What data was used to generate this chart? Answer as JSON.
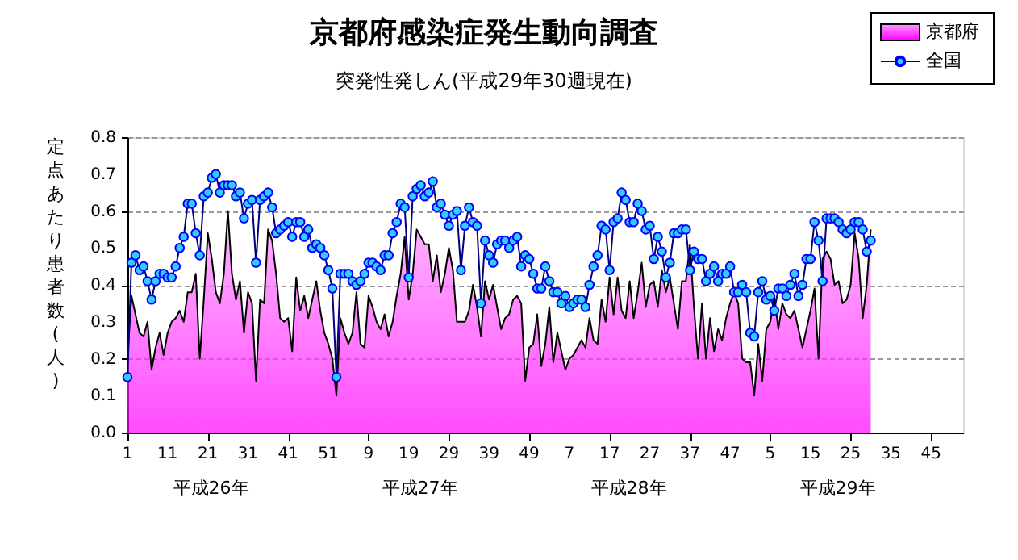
{
  "chart_data": {
    "type": "line",
    "title": "京都府感染症発生動向調査",
    "subtitle": "突発性発しん(平成29年30週現在)",
    "ylabel": "定点あたり患者数(人)",
    "categories": [
      "1",
      null,
      null,
      null,
      null,
      null,
      null,
      null,
      null,
      null,
      "11",
      null,
      null,
      null,
      null,
      null,
      null,
      null,
      null,
      null,
      "21",
      null,
      null,
      null,
      null,
      null,
      null,
      null,
      null,
      null,
      "31",
      null,
      null,
      null,
      null,
      null,
      null,
      null,
      null,
      null,
      "41",
      null,
      null,
      null,
      null,
      null,
      null,
      null,
      null,
      null,
      "51",
      null,
      null,
      null,
      null,
      null,
      null,
      null,
      null,
      null,
      "9",
      null,
      null,
      null,
      null,
      null,
      null,
      null,
      null,
      null,
      "19",
      null,
      null,
      null,
      null,
      null,
      null,
      null,
      null,
      null,
      "29",
      null,
      null,
      null,
      null,
      null,
      null,
      null,
      null,
      null,
      "39",
      null,
      null,
      null,
      null,
      null,
      null,
      null,
      null,
      null,
      "49",
      null,
      null,
      null,
      null,
      null,
      null,
      null,
      null,
      null,
      "7",
      null,
      null,
      null,
      null,
      null,
      null,
      null,
      null,
      null,
      "17",
      null,
      null,
      null,
      null,
      null,
      null,
      null,
      null,
      null,
      "27",
      null,
      null,
      null,
      null,
      null,
      null,
      null,
      null,
      null,
      "37",
      null,
      null,
      null,
      null,
      null,
      null,
      null,
      null,
      null,
      "47",
      null,
      null,
      null,
      null,
      null,
      null,
      null,
      null,
      null,
      "5",
      null,
      null,
      null,
      null,
      null,
      null,
      null,
      null,
      null,
      "15",
      null,
      null,
      null,
      null,
      null,
      null,
      null,
      null,
      null,
      "25",
      null,
      null,
      null,
      null,
      null,
      null,
      null,
      null,
      null,
      "35",
      null,
      null,
      null,
      null,
      null,
      null,
      null,
      null,
      null,
      "45",
      null,
      null,
      null,
      null,
      null,
      null,
      null,
      null
    ],
    "ylim": [
      0,
      0.8
    ],
    "yticks": [
      {
        "value": 0,
        "label": "0.0"
      },
      0.1,
      0.2,
      0.3,
      0.4,
      0.5,
      0.6,
      0.7,
      0.8
    ],
    "grid": "y",
    "legend": "top right",
    "annotations": [
      "平成26年",
      "平成27年",
      "平成28年",
      "平成29年"
    ],
    "series": [
      {
        "name": "京都府",
        "type": "area",
        "color": "#ff00ff",
        "values": [
          0.2,
          0.37,
          0.32,
          0.27,
          0.26,
          0.3,
          0.17,
          0.23,
          0.27,
          0.21,
          0.27,
          0.3,
          0.31,
          0.33,
          0.3,
          0.38,
          0.38,
          0.43,
          0.2,
          0.36,
          0.54,
          0.47,
          0.38,
          0.35,
          0.43,
          0.6,
          0.43,
          0.36,
          0.41,
          0.27,
          0.38,
          0.35,
          0.14,
          0.36,
          0.35,
          0.55,
          0.52,
          0.43,
          0.31,
          0.3,
          0.31,
          0.22,
          0.42,
          0.33,
          0.37,
          0.31,
          0.36,
          0.41,
          0.33,
          0.27,
          0.24,
          0.2,
          0.1,
          0.31,
          0.27,
          0.24,
          0.27,
          0.38,
          0.24,
          0.23,
          0.37,
          0.34,
          0.3,
          0.28,
          0.32,
          0.26,
          0.3,
          0.37,
          0.43,
          0.53,
          0.36,
          0.43,
          0.55,
          0.53,
          0.51,
          0.51,
          0.41,
          0.48,
          0.38,
          0.43,
          0.5,
          0.44,
          0.3,
          0.3,
          0.3,
          0.33,
          0.4,
          0.34,
          0.26,
          0.41,
          0.36,
          0.4,
          0.34,
          0.28,
          0.31,
          0.32,
          0.36,
          0.37,
          0.35,
          0.14,
          0.23,
          0.24,
          0.32,
          0.18,
          0.24,
          0.34,
          0.19,
          0.27,
          0.22,
          0.17,
          0.2,
          0.21,
          0.23,
          0.25,
          0.23,
          0.31,
          0.25,
          0.24,
          0.36,
          0.3,
          0.42,
          0.32,
          0.42,
          0.33,
          0.31,
          0.41,
          0.31,
          0.38,
          0.46,
          0.34,
          0.4,
          0.41,
          0.34,
          0.44,
          0.38,
          0.42,
          0.35,
          0.28,
          0.41,
          0.41,
          0.51,
          0.34,
          0.2,
          0.35,
          0.2,
          0.31,
          0.22,
          0.28,
          0.25,
          0.31,
          0.35,
          0.38,
          0.35,
          0.2,
          0.19,
          0.19,
          0.1,
          0.24,
          0.14,
          0.28,
          0.3,
          0.37,
          0.28,
          0.35,
          0.32,
          0.31,
          0.33,
          0.28,
          0.23,
          0.28,
          0.33,
          0.39,
          0.2,
          0.47,
          0.49,
          0.47,
          0.4,
          0.41,
          0.35,
          0.36,
          0.4,
          0.54,
          0.47,
          0.31,
          0.4,
          0.55,
          null,
          null,
          null,
          null,
          null,
          null,
          null,
          null,
          null,
          null,
          null,
          null,
          null,
          null,
          null,
          null,
          null,
          null,
          null,
          null,
          null,
          null,
          null
        ]
      },
      {
        "name": "全国",
        "color": "#33ccff",
        "marker": "circle",
        "values": [
          0.15,
          0.46,
          0.48,
          0.44,
          0.45,
          0.41,
          0.36,
          0.41,
          0.43,
          0.43,
          0.42,
          0.42,
          0.45,
          0.5,
          0.53,
          0.62,
          0.62,
          0.54,
          0.48,
          0.64,
          0.65,
          0.69,
          0.7,
          0.65,
          0.67,
          0.67,
          0.67,
          0.64,
          0.65,
          0.58,
          0.62,
          0.63,
          0.46,
          0.63,
          0.64,
          0.65,
          0.61,
          0.54,
          0.55,
          0.56,
          0.57,
          0.53,
          0.57,
          0.57,
          0.53,
          0.55,
          0.5,
          0.51,
          0.5,
          0.48,
          0.44,
          0.39,
          0.15,
          0.43,
          0.43,
          0.43,
          0.41,
          0.4,
          0.41,
          0.43,
          0.46,
          0.46,
          0.45,
          0.44,
          0.48,
          0.48,
          0.54,
          0.57,
          0.62,
          0.61,
          0.42,
          0.64,
          0.66,
          0.67,
          0.64,
          0.65,
          0.68,
          0.61,
          0.62,
          0.59,
          0.56,
          0.59,
          0.6,
          0.44,
          0.56,
          0.61,
          0.57,
          0.56,
          0.35,
          0.52,
          0.48,
          0.46,
          0.51,
          0.52,
          0.52,
          0.5,
          0.52,
          0.53,
          0.45,
          0.48,
          0.47,
          0.43,
          0.39,
          0.39,
          0.45,
          0.41,
          0.38,
          0.38,
          0.35,
          0.37,
          0.34,
          0.35,
          0.36,
          0.36,
          0.34,
          0.4,
          0.45,
          0.48,
          0.56,
          0.55,
          0.44,
          0.57,
          0.58,
          0.65,
          0.63,
          0.57,
          0.57,
          0.62,
          0.6,
          0.55,
          0.56,
          0.47,
          0.53,
          0.49,
          0.42,
          0.46,
          0.54,
          0.54,
          0.55,
          0.55,
          0.44,
          0.49,
          0.47,
          0.47,
          0.41,
          0.43,
          0.45,
          0.41,
          0.43,
          0.43,
          0.45,
          0.38,
          0.38,
          0.4,
          0.38,
          0.27,
          0.26,
          0.38,
          0.41,
          0.36,
          0.37,
          0.33,
          0.39,
          0.39,
          0.37,
          0.4,
          0.43,
          0.37,
          0.4,
          0.47,
          0.47,
          0.57,
          0.52,
          0.41,
          0.58,
          0.58,
          0.58,
          0.57,
          0.55,
          0.54,
          0.55,
          0.57,
          0.57,
          0.55,
          0.49,
          0.52,
          null,
          null,
          null,
          null,
          null,
          null,
          null,
          null,
          null,
          null,
          null,
          null,
          null,
          null,
          null,
          null,
          null,
          null,
          null,
          null,
          null,
          null,
          null
        ]
      }
    ]
  }
}
